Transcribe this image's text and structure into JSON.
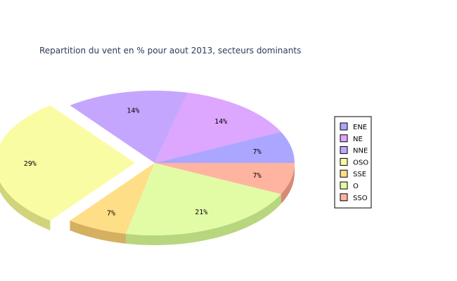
{
  "chart_data": {
    "type": "pie",
    "title": "Repartition du vent en % pour aout 2013, secteurs dominants",
    "three_d": true,
    "exploded_slice": "OSO",
    "legend_position": "right",
    "slices": [
      {
        "label": "ENE",
        "value": 7,
        "display": "7%",
        "color": "#ABA6FF",
        "side": "#7F7BD0"
      },
      {
        "label": "NE",
        "value": 14,
        "display": "14%",
        "color": "#DDA6FF",
        "side": "#AE7DD0"
      },
      {
        "label": "NNE",
        "value": 14,
        "display": "14%",
        "color": "#C5A6FF",
        "side": "#977AD0"
      },
      {
        "label": "OSO",
        "value": 29,
        "display": "29%",
        "color": "#FAFCA4",
        "side": "#D2D47C"
      },
      {
        "label": "SSE",
        "value": 7,
        "display": "7%",
        "color": "#FFDE88",
        "side": "#D4B060"
      },
      {
        "label": "O",
        "value": 21,
        "display": "21%",
        "color": "#E2FCA6",
        "side": "#B8D67E"
      },
      {
        "label": "SSO",
        "value": 7,
        "display": "7%",
        "color": "#FFB4A0",
        "side": "#D68A76"
      }
    ]
  }
}
